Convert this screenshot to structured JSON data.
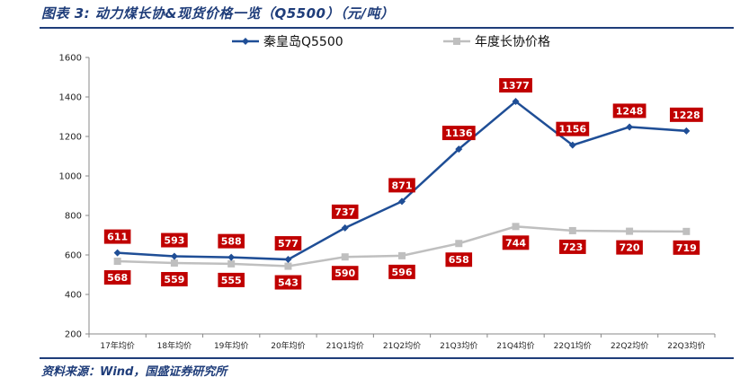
{
  "caption": "图表 3:  动力煤长协&现货价格一览（Q5500）（元/吨）",
  "source": "资料来源：Wind，国盛证券研究所",
  "chart_data": {
    "type": "line",
    "categories": [
      "17年均价",
      "18年均价",
      "19年均价",
      "20年均价",
      "21Q1均价",
      "21Q2均价",
      "21Q3均价",
      "21Q4均价",
      "22Q1均价",
      "22Q2均价",
      "22Q3均价"
    ],
    "ylim": [
      200,
      1600
    ],
    "yticks": [
      200,
      400,
      600,
      800,
      1000,
      1200,
      1400,
      1600
    ],
    "legend_position": "top",
    "grid": false,
    "series": [
      {
        "name": "秦皇岛Q5500",
        "color": "#1f4e96",
        "marker": "diamond",
        "values": [
          611,
          593,
          588,
          577,
          737,
          871,
          1136,
          1377,
          1156,
          1248,
          1228
        ]
      },
      {
        "name": "年度长协价格",
        "color": "#bfbfbf",
        "marker": "square",
        "values": [
          568,
          559,
          555,
          543,
          590,
          596,
          658,
          744,
          723,
          720,
          719
        ]
      }
    ],
    "data_label_color": "#c00000"
  }
}
